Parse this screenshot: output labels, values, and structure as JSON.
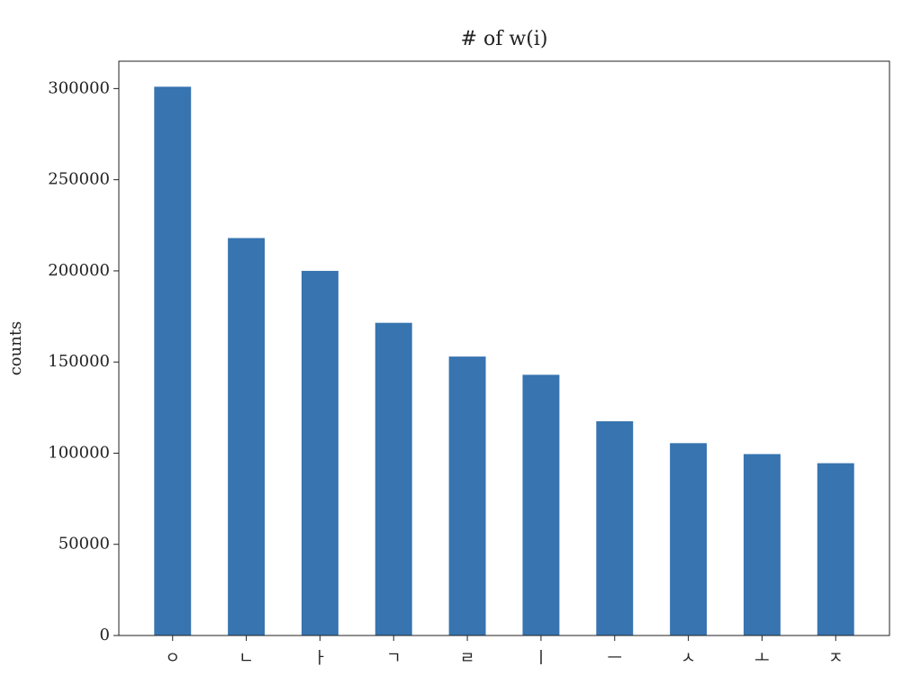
{
  "chart_data": {
    "type": "bar",
    "title": "# of w(i)",
    "ylabel": "counts",
    "categories": [
      "ㅇ",
      "ㄴ",
      "ㅏ",
      "ㄱ",
      "ㄹ",
      "ㅣ",
      "ㅡ",
      "ㅅ",
      "ㅗ",
      "ㅈ"
    ],
    "values": [
      301000,
      218000,
      200000,
      171500,
      153000,
      143000,
      117500,
      105500,
      99500,
      94500
    ],
    "color": "#3774b0",
    "ylim": [
      0,
      315000
    ],
    "yticks": [
      0,
      50000,
      100000,
      150000,
      200000,
      250000,
      300000
    ],
    "grid": false
  }
}
